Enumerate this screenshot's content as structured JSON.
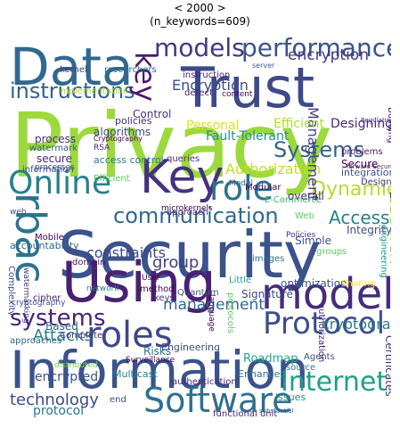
{
  "title": {
    "line1": "< 2000 >",
    "line2": "(n_keywords=609)"
  },
  "words": [
    {
      "text": "Privacy",
      "color": "#9bd93c"
    },
    {
      "text": "Security",
      "color": "#3b528b"
    },
    {
      "text": "Information",
      "color": "#3b528b"
    },
    {
      "text": "Data",
      "color": "#31688e"
    },
    {
      "text": "Trust",
      "color": "#3e4989"
    },
    {
      "text": "Using",
      "color": "#482173"
    },
    {
      "text": "Key",
      "color": "#46317e"
    },
    {
      "text": "model",
      "color": "#472c7a"
    },
    {
      "text": "roles",
      "color": "#3f4788"
    },
    {
      "text": "Software",
      "color": "#2e6f8e"
    },
    {
      "text": "Online",
      "color": "#27808e"
    },
    {
      "text": "role",
      "color": "#2c728e"
    },
    {
      "text": "rbac",
      "color": "#2c738e"
    },
    {
      "text": "Protocol",
      "color": "#3d4e8a"
    },
    {
      "text": "Internet",
      "color": "#1fa088"
    },
    {
      "text": "models",
      "color": "#453882"
    },
    {
      "text": "performance",
      "color": "#3a548c"
    },
    {
      "text": "communication",
      "color": "#31678e"
    },
    {
      "text": "systems",
      "color": "#482475"
    },
    {
      "text": "Systems",
      "color": "#33638d"
    },
    {
      "text": "instructions",
      "color": "#34618d"
    },
    {
      "text": "key",
      "color": "#481a6c"
    },
    {
      "text": "research",
      "color": "#a5db36"
    },
    {
      "text": "Attacks",
      "color": "#26828e"
    },
    {
      "text": "technology",
      "color": "#3f4889"
    },
    {
      "text": "Authorization",
      "color": "#c2df23"
    },
    {
      "text": "Dynamic",
      "color": "#b5de2b"
    },
    {
      "text": "Access",
      "color": "#26828e"
    },
    {
      "text": "encryption",
      "color": "#443983"
    },
    {
      "text": "Encryption",
      "color": "#3d4d8a"
    },
    {
      "text": "Management",
      "color": "#433e85"
    },
    {
      "text": "group",
      "color": "#423f85"
    },
    {
      "text": "management",
      "color": "#31688e"
    },
    {
      "text": "constraints",
      "color": "#3e4a89"
    },
    {
      "text": "cryptographic",
      "color": "#2a788e"
    },
    {
      "text": "encrypted",
      "color": "#3b528b"
    },
    {
      "text": "protocol",
      "color": "#2a788e"
    },
    {
      "text": "Personal",
      "color": "#dfe318"
    },
    {
      "text": "Efficient",
      "color": "#addc30"
    },
    {
      "text": "Fault-Tolerant",
      "color": "#21918c"
    },
    {
      "text": "Designing",
      "color": "#482878"
    },
    {
      "text": "instruction",
      "color": "#482475"
    },
    {
      "text": "detect",
      "color": "#481f70"
    },
    {
      "text": "content",
      "color": "#440154"
    },
    {
      "text": "Efficient",
      "color": "#5ec962"
    },
    {
      "text": "Modular",
      "color": "#440154"
    },
    {
      "text": "Quantum",
      "color": "#3b528b"
    },
    {
      "text": "access control",
      "color": "#2a788e"
    },
    {
      "text": "algorithms",
      "color": "#3e4a89"
    },
    {
      "text": "watermark",
      "color": "#365c8d"
    },
    {
      "text": "process",
      "color": "#46327e"
    },
    {
      "text": "secure",
      "color": "#482878"
    },
    {
      "text": "policies",
      "color": "#472d7b"
    },
    {
      "text": "researchers",
      "color": "#2e6e8e"
    },
    {
      "text": "kernel",
      "color": "#433d84"
    },
    {
      "text": "server",
      "color": "#365c8d"
    },
    {
      "text": "Building",
      "color": "#482475"
    },
    {
      "text": "Implementation",
      "color": "#31688e"
    },
    {
      "text": "Secure",
      "color": "#440154"
    },
    {
      "text": "integration",
      "color": "#3b528b"
    },
    {
      "text": "problems",
      "color": "#481a6c"
    },
    {
      "text": "Design",
      "color": "#46337f"
    },
    {
      "text": "Integrity",
      "color": "#3e4c8a"
    },
    {
      "text": "engineering",
      "color": "#1f9e89"
    },
    {
      "text": "Simple",
      "color": "#3b528b"
    },
    {
      "text": "Signature",
      "color": "#3e4a89"
    },
    {
      "text": "Policies",
      "color": "#46327e"
    },
    {
      "text": "Based",
      "color": "#31688e"
    },
    {
      "text": "Complete",
      "color": "#472f7d"
    },
    {
      "text": "approaches",
      "color": "#31688e"
    },
    {
      "text": "Risks",
      "color": "#2c728e"
    },
    {
      "text": "Engineering",
      "color": "#3e4989"
    },
    {
      "text": "Surveillance",
      "color": "#440154"
    },
    {
      "text": "Multicast",
      "color": "#26828e"
    },
    {
      "text": "authentication",
      "color": "#482677"
    },
    {
      "text": "Enhanced",
      "color": "#2a788e"
    },
    {
      "text": "Roadmap",
      "color": "#22a884"
    },
    {
      "text": "Agents",
      "color": "#3b528b"
    },
    {
      "text": "source",
      "color": "#2a788e"
    },
    {
      "text": "Issues",
      "color": "#21918c"
    },
    {
      "text": "Certificates",
      "color": "#46327e"
    },
    {
      "text": "optimization",
      "color": "#3b528b"
    },
    {
      "text": "microkernel",
      "color": "#3e4a89"
    },
    {
      "text": "microkernels",
      "color": "#440154"
    },
    {
      "text": "functional unit",
      "color": "#482677"
    },
    {
      "text": "optimized ciphers",
      "color": "#3e4989"
    },
    {
      "text": "detection",
      "color": "#414487"
    },
    {
      "text": "distributed",
      "color": "#73d056"
    },
    {
      "text": "cryptography",
      "color": "#3b528b"
    },
    {
      "text": "network",
      "color": "#2a788e"
    },
    {
      "text": "method",
      "color": "#440154"
    },
    {
      "text": "keys",
      "color": "#46337f"
    },
    {
      "text": "images",
      "color": "#2c728e"
    },
    {
      "text": "Sharing",
      "color": "#fde725"
    },
    {
      "text": "authorization",
      "color": "#482677"
    },
    {
      "text": "overall",
      "color": "#482475"
    },
    {
      "text": "approach",
      "color": "#453781"
    },
    {
      "text": "Web",
      "color": "#5ec962"
    },
    {
      "text": "web",
      "color": "#3b528b"
    },
    {
      "text": "information",
      "color": "#3e4a89"
    },
    {
      "text": "Mobile",
      "color": "#440154"
    },
    {
      "text": "accountability",
      "color": "#31688e"
    },
    {
      "text": "domain",
      "color": "#471365"
    },
    {
      "text": "Complexity",
      "color": "#3e4989"
    },
    {
      "text": "watermarking",
      "color": "#443a83"
    },
    {
      "text": "cipher",
      "color": "#482475"
    },
    {
      "text": "E-Commerce",
      "color": "#35b779"
    },
    {
      "text": "Cryptography",
      "color": "#440154"
    },
    {
      "text": "Control",
      "color": "#46327e"
    },
    {
      "text": "Model",
      "color": "#31688e"
    },
    {
      "text": "Little",
      "color": "#1f9e89"
    },
    {
      "text": "User",
      "color": "#440154"
    },
    {
      "text": "IP",
      "color": "#440154"
    },
    {
      "text": "PKI",
      "color": "#440154"
    },
    {
      "text": "groups",
      "color": "#5ec962"
    },
    {
      "text": "RSA",
      "color": "#482878"
    },
    {
      "text": "end",
      "color": "#3e4989"
    },
    {
      "text": "processes",
      "color": "#3e4a89"
    },
    {
      "text": "queries",
      "color": "#46327e"
    },
    {
      "text": "implementation",
      "color": "#addc30"
    },
    {
      "text": "Protection",
      "color": "#21918c"
    },
    {
      "text": "business",
      "color": "#2a788e"
    },
    {
      "text": "standard",
      "color": "#3e4a89"
    },
    {
      "text": "substantial",
      "color": "#31688e"
    },
    {
      "text": "forward-Secure",
      "color": "#482475"
    },
    {
      "text": "Regulating",
      "color": "#46327e"
    },
    {
      "text": "protocols",
      "color": "#5ec962"
    },
    {
      "text": "language",
      "color": "#440154"
    }
  ]
}
